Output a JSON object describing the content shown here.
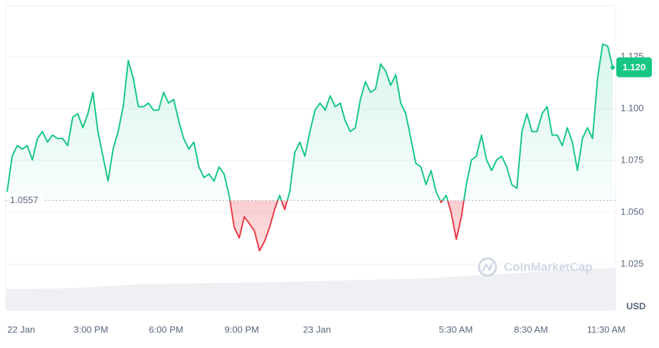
{
  "chart_data": {
    "type": "line",
    "values": [
      1.0599,
      1.0771,
      1.0822,
      1.0805,
      1.0822,
      1.0753,
      1.0856,
      1.089,
      1.0839,
      1.0873,
      1.0856,
      1.0856,
      1.0822,
      1.0959,
      1.0976,
      1.0908,
      1.0976,
      1.1079,
      1.089,
      1.0771,
      1.0651,
      1.0805,
      1.089,
      1.101,
      1.1233,
      1.1147,
      1.101,
      1.101,
      1.1027,
      1.0993,
      1.0993,
      1.1079,
      1.1027,
      1.1045,
      1.0942,
      1.0856,
      1.0805,
      1.0839,
      1.0719,
      1.0668,
      1.0685,
      1.0651,
      1.0719,
      1.0685,
      1.0582,
      1.0428,
      1.0377,
      1.0479,
      1.0445,
      1.0411,
      1.0315,
      1.036,
      1.0428,
      1.0514,
      1.0582,
      1.0514,
      1.0599,
      1.0788,
      1.0839,
      1.0771,
      1.089,
      1.0993,
      1.1027,
      1.0993,
      1.1062,
      1.101,
      1.1027,
      1.0942,
      1.089,
      1.0908,
      1.1045,
      1.113,
      1.1079,
      1.1096,
      1.1216,
      1.1182,
      1.1113,
      1.1164,
      1.1027,
      1.0976,
      1.0856,
      1.0736,
      1.0719,
      1.0634,
      1.0702,
      1.0599,
      1.0548,
      1.0582,
      1.0497,
      1.037,
      1.0479,
      1.0634,
      1.0753,
      1.0771,
      1.0873,
      1.0753,
      1.0702,
      1.0753,
      1.0771,
      1.0719,
      1.0634,
      1.0616,
      1.089,
      1.0976,
      1.089,
      1.089,
      1.0976,
      1.101,
      1.0873,
      1.0873,
      1.0822,
      1.0908,
      1.0839,
      1.0702,
      1.0856,
      1.0908,
      1.0856,
      1.1147,
      1.1312,
      1.1302,
      1.1199
    ],
    "baseline": 1.0557,
    "last_price": {
      "value": 1.12,
      "label": "1.120"
    },
    "up_color": "#16c784",
    "down_color": "#ea3943",
    "xlim": [
      0,
      120
    ],
    "xticks": [
      {
        "value": 2.8,
        "label": "22 Jan"
      },
      {
        "value": 16.6,
        "label": "3:00 PM"
      },
      {
        "value": 31.5,
        "label": "6:00 PM"
      },
      {
        "value": 46.5,
        "label": "9:00 PM"
      },
      {
        "value": 61.4,
        "label": "23 Jan"
      },
      {
        "value": 88.9,
        "label": "5:30 AM"
      },
      {
        "value": 103.8,
        "label": "8:30 AM"
      },
      {
        "value": 118.7,
        "label": "11:30 AM"
      }
    ],
    "ylim": [
      1.00274,
      1.1497
    ],
    "yticks": [
      1.025,
      {
        "value": 1.05,
        "label": "1.050"
      },
      1.075,
      {
        "value": 1.1,
        "label": "1.100"
      },
      1.125
    ],
    "y_unit": "USD",
    "watermark": "CoinMarketCap",
    "grid": true
  }
}
